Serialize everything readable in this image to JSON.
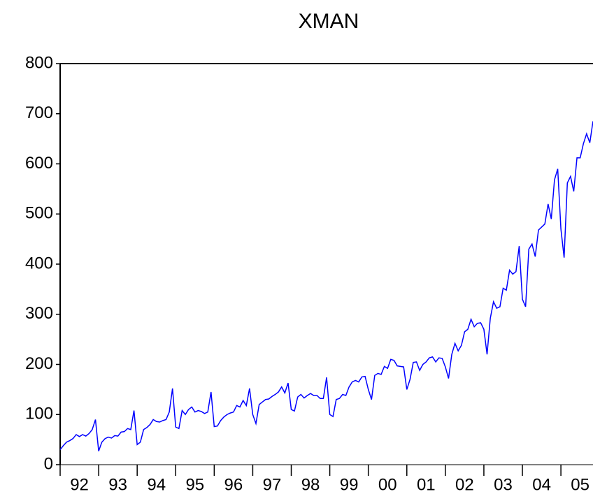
{
  "chart_data": {
    "type": "line",
    "title": "XMAN",
    "x": [
      1992,
      1992.083,
      1992.167,
      1992.25,
      1992.333,
      1992.417,
      1992.5,
      1992.583,
      1992.667,
      1992.75,
      1992.833,
      1992.917,
      1993,
      1993.083,
      1993.167,
      1993.25,
      1993.333,
      1993.417,
      1993.5,
      1993.583,
      1993.667,
      1993.75,
      1993.833,
      1993.917,
      1994,
      1994.083,
      1994.167,
      1994.25,
      1994.333,
      1994.417,
      1994.5,
      1994.583,
      1994.667,
      1994.75,
      1994.833,
      1994.917,
      1995,
      1995.083,
      1995.167,
      1995.25,
      1995.333,
      1995.417,
      1995.5,
      1995.583,
      1995.667,
      1995.75,
      1995.833,
      1995.917,
      1996,
      1996.083,
      1996.167,
      1996.25,
      1996.333,
      1996.417,
      1996.5,
      1996.583,
      1996.667,
      1996.75,
      1996.833,
      1996.917,
      1997,
      1997.083,
      1997.167,
      1997.25,
      1997.333,
      1997.417,
      1997.5,
      1997.583,
      1997.667,
      1997.75,
      1997.833,
      1997.917,
      1998,
      1998.083,
      1998.167,
      1998.25,
      1998.333,
      1998.417,
      1998.5,
      1998.583,
      1998.667,
      1998.75,
      1998.833,
      1998.917,
      1999,
      1999.083,
      1999.167,
      1999.25,
      1999.333,
      1999.417,
      1999.5,
      1999.583,
      1999.667,
      1999.75,
      1999.833,
      1999.917,
      2000,
      2000.083,
      2000.167,
      2000.25,
      2000.333,
      2000.417,
      2000.5,
      2000.583,
      2000.667,
      2000.75,
      2000.833,
      2000.917,
      2001,
      2001.083,
      2001.167,
      2001.25,
      2001.333,
      2001.417,
      2001.5,
      2001.583,
      2001.667,
      2001.75,
      2001.833,
      2001.917,
      2002,
      2002.083,
      2002.167,
      2002.25,
      2002.333,
      2002.417,
      2002.5,
      2002.583,
      2002.667,
      2002.75,
      2002.833,
      2002.917,
      2003,
      2003.083,
      2003.167,
      2003.25,
      2003.333,
      2003.417,
      2003.5,
      2003.583,
      2003.667,
      2003.75,
      2003.833,
      2003.917,
      2004,
      2004.083,
      2004.167,
      2004.25,
      2004.333,
      2004.417,
      2004.5,
      2004.583,
      2004.667,
      2004.75,
      2004.833,
      2004.917,
      2005,
      2005.083,
      2005.167,
      2005.25,
      2005.333,
      2005.417,
      2005.5,
      2005.583,
      2005.667,
      2005.75,
      2005.833
    ],
    "series": [
      {
        "name": "XMAN",
        "color": "#0000ff",
        "values": [
          30,
          38,
          45,
          48,
          52,
          60,
          56,
          60,
          57,
          62,
          70,
          90,
          27,
          45,
          52,
          55,
          53,
          58,
          57,
          65,
          66,
          72,
          70,
          108,
          40,
          45,
          70,
          74,
          80,
          90,
          86,
          85,
          88,
          90,
          105,
          152,
          75,
          72,
          108,
          100,
          110,
          115,
          105,
          108,
          106,
          102,
          105,
          145,
          76,
          77,
          88,
          95,
          100,
          103,
          105,
          118,
          115,
          128,
          118,
          152,
          100,
          82,
          120,
          125,
          130,
          131,
          136,
          140,
          145,
          155,
          143,
          163,
          110,
          107,
          135,
          140,
          133,
          138,
          142,
          138,
          138,
          132,
          132,
          174,
          100,
          96,
          130,
          132,
          140,
          138,
          155,
          165,
          168,
          165,
          175,
          176,
          150,
          130,
          178,
          182,
          180,
          196,
          192,
          210,
          208,
          197,
          196,
          195,
          150,
          170,
          204,
          205,
          188,
          200,
          205,
          213,
          215,
          205,
          213,
          212,
          195,
          172,
          220,
          242,
          227,
          238,
          265,
          270,
          290,
          275,
          282,
          283,
          270,
          220,
          292,
          325,
          312,
          315,
          352,
          348,
          388,
          380,
          385,
          436,
          330,
          315,
          430,
          440,
          415,
          468,
          474,
          480,
          520,
          490,
          568,
          590,
          470,
          413,
          562,
          575,
          545,
          612,
          612,
          640,
          660,
          642,
          685
        ]
      }
    ],
    "xlim": [
      1992,
      2005.833
    ],
    "xticks": [
      {
        "value": 1992.5,
        "label": "92"
      },
      {
        "value": 1993.5,
        "label": "93"
      },
      {
        "value": 1994.5,
        "label": "94"
      },
      {
        "value": 1995.5,
        "label": "95"
      },
      {
        "value": 1996.5,
        "label": "96"
      },
      {
        "value": 1997.5,
        "label": "97"
      },
      {
        "value": 1998.5,
        "label": "98"
      },
      {
        "value": 1999.5,
        "label": "99"
      },
      {
        "value": 2000.5,
        "label": "00"
      },
      {
        "value": 2001.5,
        "label": "01"
      },
      {
        "value": 2002.5,
        "label": "02"
      },
      {
        "value": 2003.5,
        "label": "03"
      },
      {
        "value": 2004.5,
        "label": "04"
      },
      {
        "value": 2005.5,
        "label": "05"
      }
    ],
    "xmajorticks": [
      1992,
      1993,
      1994,
      1995,
      1996,
      1997,
      1998,
      1999,
      2000,
      2001,
      2002,
      2003,
      2004,
      2005
    ],
    "ylim": [
      0,
      800
    ],
    "yticks": [
      0,
      100,
      200,
      300,
      400,
      500,
      600,
      700,
      800
    ],
    "grid": false
  }
}
